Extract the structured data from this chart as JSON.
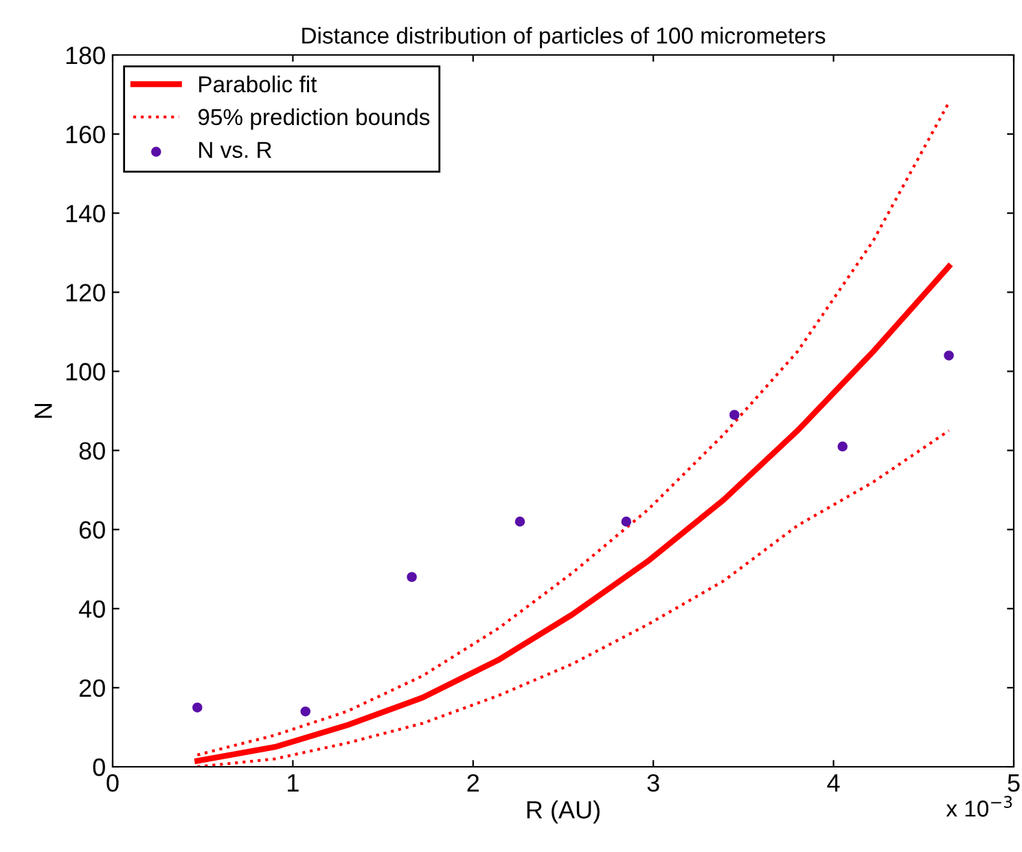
{
  "chart_data": {
    "type": "line",
    "title": "Distance distribution of particles of 100 micrometers",
    "xlabel": "R (AU)",
    "ylabel": "N",
    "xlim": [
      0,
      5
    ],
    "xticks": [
      0,
      1,
      2,
      3,
      4,
      5
    ],
    "ylim": [
      0,
      180
    ],
    "yticks": [
      0,
      20,
      40,
      60,
      80,
      100,
      120,
      140,
      160,
      180
    ],
    "annotations": [
      "x 10$^{−3}$"
    ],
    "grid": false,
    "legend": "top left",
    "series": [
      {
        "name": "Parabolic fit",
        "color": "#ff0000",
        "line_style": "solid",
        "marker": "none",
        "x": [
          0.47,
          0.9,
          1.3,
          1.72,
          2.14,
          2.55,
          2.97,
          3.39,
          3.8,
          4.22,
          4.64
        ],
        "values": [
          1.5,
          5,
          10.5,
          17.5,
          27,
          38.5,
          52,
          67.5,
          85,
          105,
          126.5
        ]
      },
      {
        "name": "95% prediction bounds",
        "color": "#ff0000",
        "line_style": "dotted",
        "marker": "none",
        "x": [
          0.47,
          0.9,
          1.3,
          1.72,
          2.14,
          2.55,
          2.97,
          3.39,
          3.8,
          4.22,
          4.64
        ],
        "values": [
          3,
          8,
          14,
          23,
          35,
          49,
          65,
          84,
          105,
          133,
          168
        ]
      },
      {
        "color": "#ff0000",
        "line_style": "dotted",
        "marker": "none",
        "x": [
          0.47,
          0.9,
          1.3,
          1.72,
          2.14,
          2.55,
          2.97,
          3.39,
          3.8,
          4.22,
          4.64
        ],
        "values": [
          0,
          2,
          6,
          11,
          18,
          26,
          36,
          47,
          61,
          72,
          85
        ]
      },
      {
        "name": "N vs. R",
        "type": "scatter",
        "color": "#5a0fa8",
        "marker": "circle",
        "x": [
          0.47,
          1.07,
          1.66,
          2.26,
          2.85,
          3.45,
          4.05,
          4.64
        ],
        "values": [
          15,
          14,
          48,
          62,
          62,
          89,
          81,
          104
        ]
      }
    ]
  }
}
